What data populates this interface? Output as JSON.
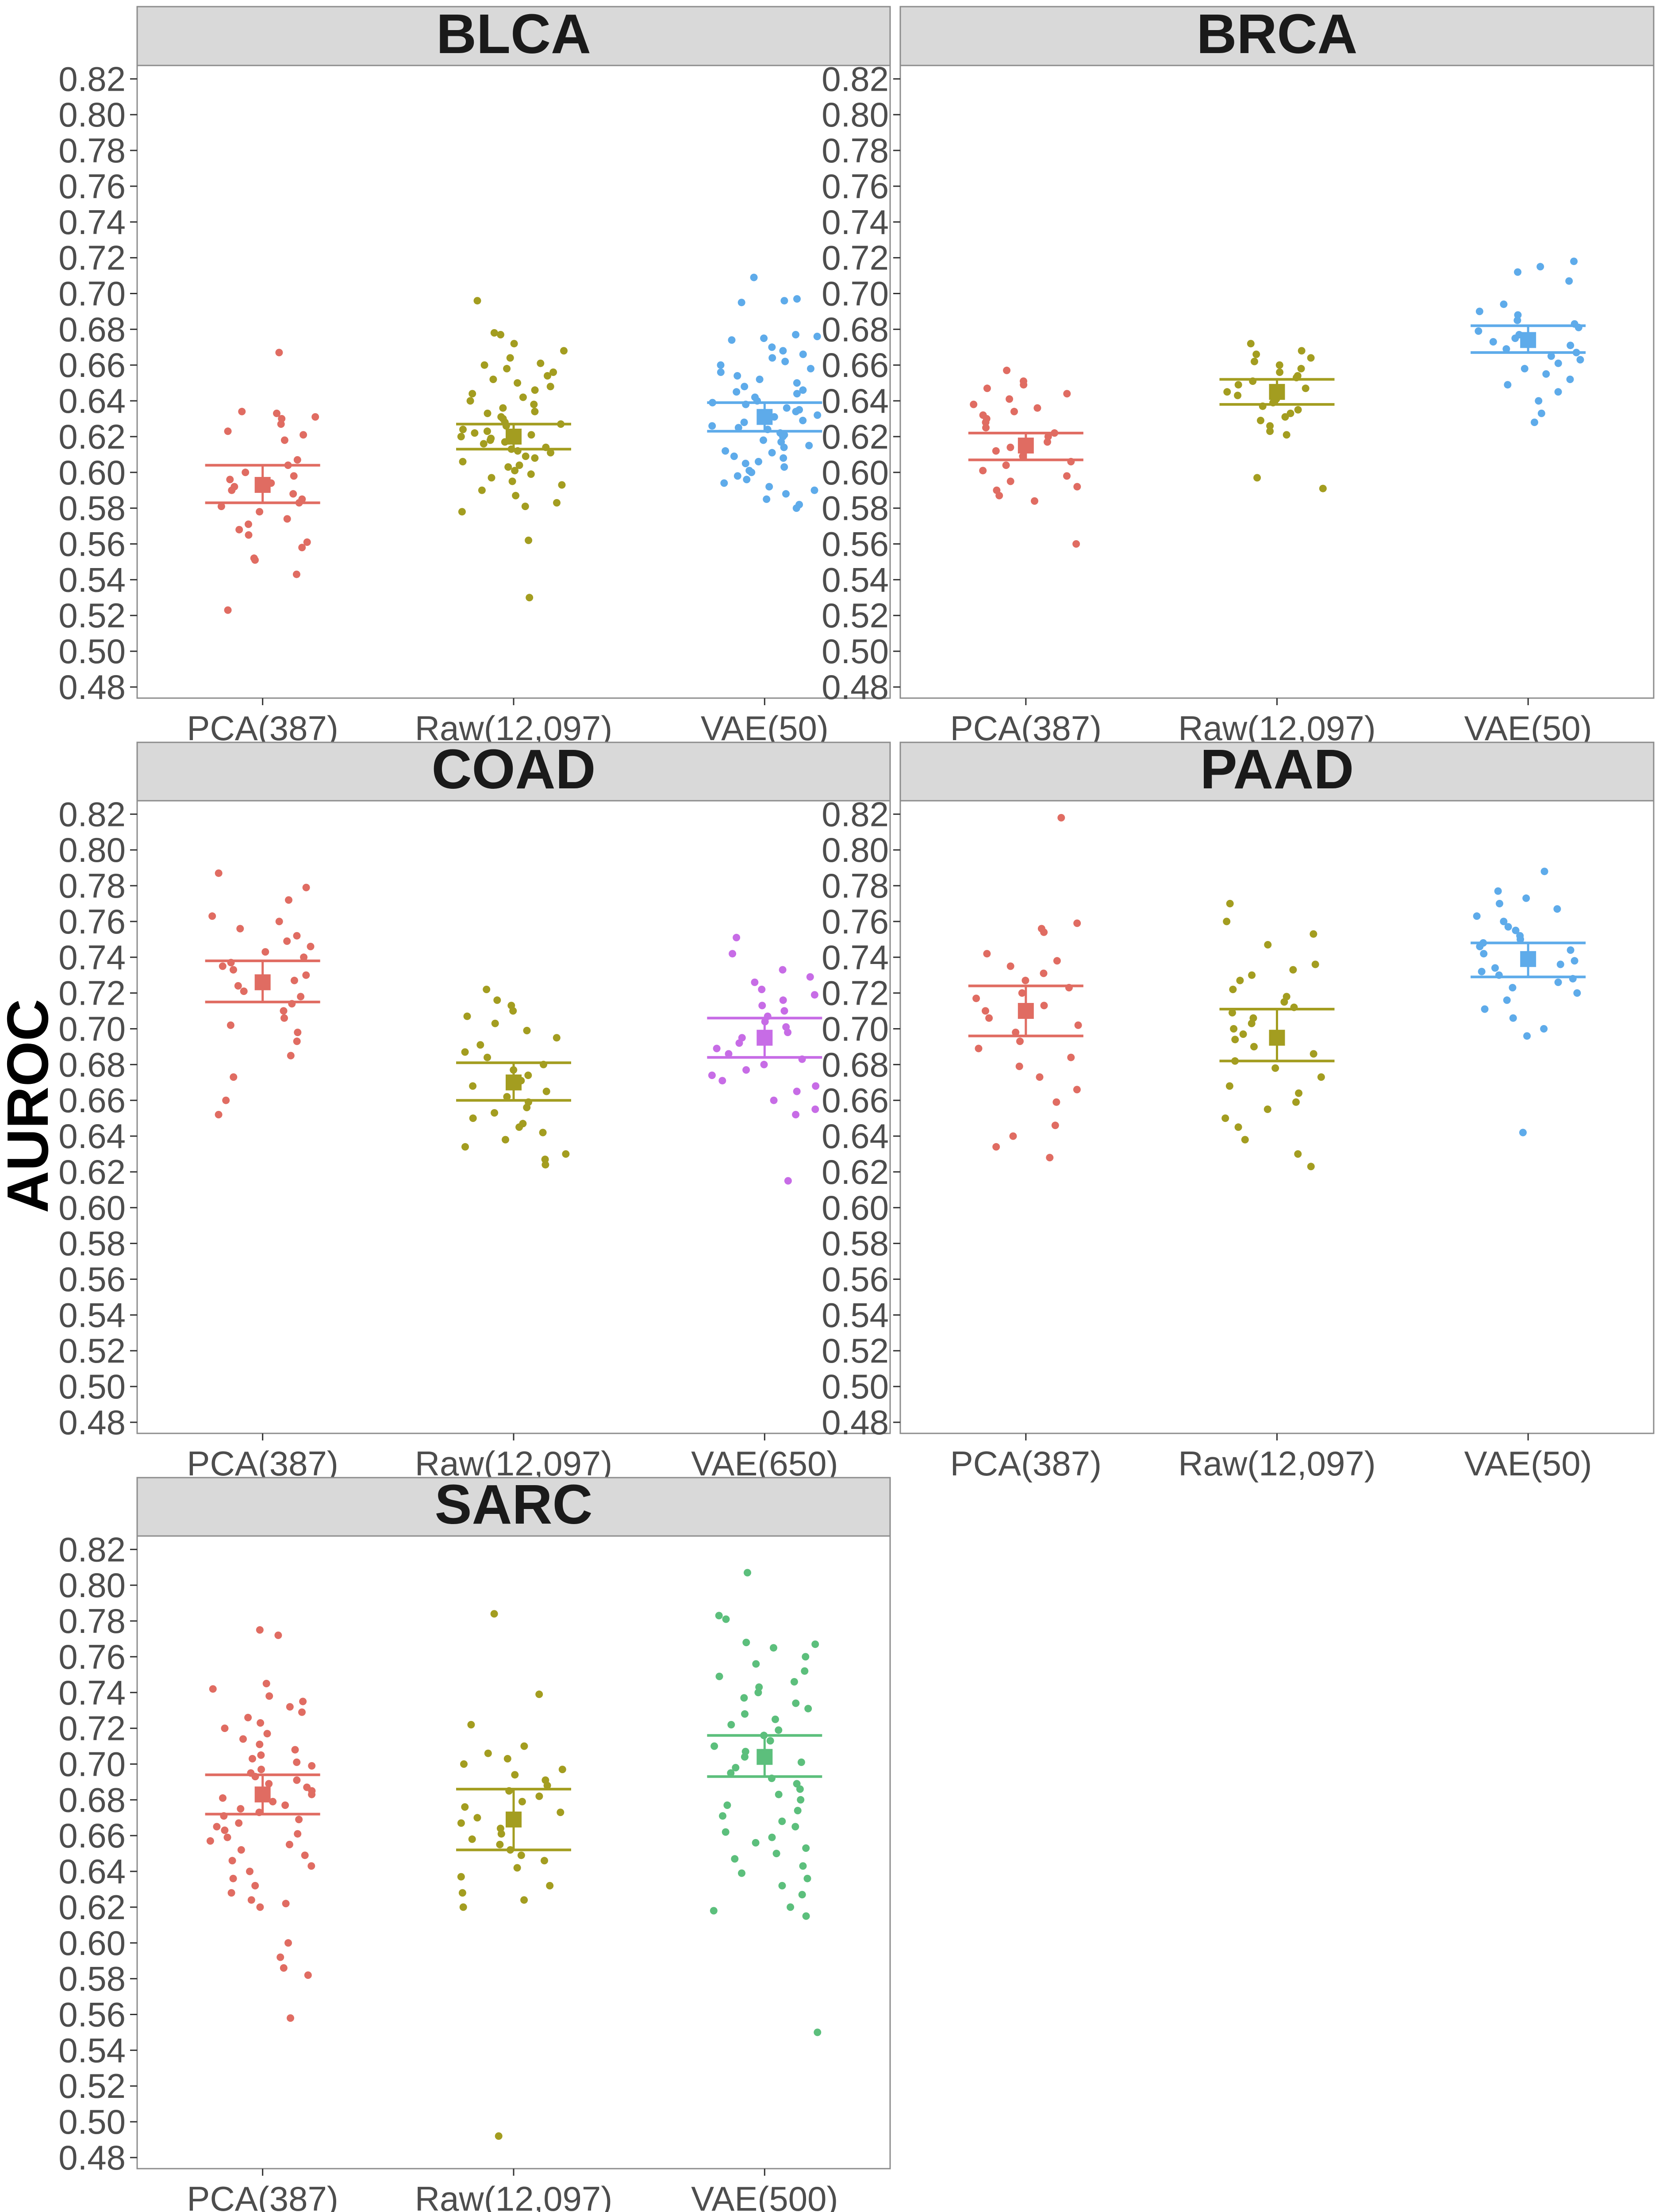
{
  "chart_data": {
    "type": "scatter",
    "ylabel": "AUROC",
    "ylim": [
      0.48,
      0.82
    ],
    "yticks": [
      "0.48",
      "0.50",
      "0.52",
      "0.54",
      "0.56",
      "0.58",
      "0.60",
      "0.62",
      "0.64",
      "0.66",
      "0.68",
      "0.70",
      "0.72",
      "0.74",
      "0.76",
      "0.78",
      "0.80",
      "0.82"
    ],
    "grid": false,
    "legend": "none",
    "colors": {
      "PCA": "#e06c62",
      "Raw": "#a39d20",
      "VAE_blue": "#5eabea",
      "VAE_purple": "#c76ce6",
      "VAE_green": "#5cbf7c"
    },
    "panels": [
      {
        "title": "BLCA",
        "categories": [
          "PCA(387)",
          "Raw(12,097)",
          "VAE(50)"
        ],
        "groups": [
          {
            "color": "#e06c62",
            "mean": 0.593,
            "ci": [
              0.583,
              0.604
            ],
            "points": [
              0.667,
              0.634,
              0.633,
              0.631,
              0.63,
              0.627,
              0.623,
              0.621,
              0.618,
              0.607,
              0.604,
              0.6,
              0.598,
              0.596,
              0.594,
              0.592,
              0.59,
              0.588,
              0.585,
              0.583,
              0.581,
              0.578,
              0.574,
              0.571,
              0.568,
              0.565,
              0.561,
              0.558,
              0.552,
              0.551,
              0.543,
              0.523
            ]
          },
          {
            "color": "#a39d20",
            "mean": 0.62,
            "ci": [
              0.613,
              0.627
            ],
            "points": [
              0.696,
              0.678,
              0.677,
              0.672,
              0.668,
              0.664,
              0.661,
              0.66,
              0.658,
              0.656,
              0.654,
              0.652,
              0.65,
              0.648,
              0.646,
              0.644,
              0.642,
              0.64,
              0.638,
              0.636,
              0.634,
              0.633,
              0.631,
              0.63,
              0.628,
              0.627,
              0.626,
              0.624,
              0.623,
              0.622,
              0.621,
              0.62,
              0.619,
              0.618,
              0.617,
              0.616,
              0.614,
              0.613,
              0.612,
              0.611,
              0.609,
              0.608,
              0.606,
              0.604,
              0.603,
              0.601,
              0.599,
              0.597,
              0.595,
              0.593,
              0.59,
              0.587,
              0.583,
              0.581,
              0.578,
              0.562,
              0.53
            ]
          },
          {
            "color": "#5eabea",
            "mean": 0.631,
            "ci": [
              0.623,
              0.639
            ],
            "points": [
              0.709,
              0.697,
              0.696,
              0.695,
              0.677,
              0.676,
              0.675,
              0.674,
              0.67,
              0.668,
              0.666,
              0.664,
              0.662,
              0.66,
              0.658,
              0.656,
              0.654,
              0.652,
              0.65,
              0.648,
              0.646,
              0.645,
              0.644,
              0.642,
              0.64,
              0.639,
              0.638,
              0.636,
              0.635,
              0.634,
              0.632,
              0.631,
              0.629,
              0.628,
              0.626,
              0.625,
              0.624,
              0.622,
              0.621,
              0.62,
              0.618,
              0.617,
              0.615,
              0.614,
              0.612,
              0.611,
              0.609,
              0.608,
              0.606,
              0.605,
              0.603,
              0.601,
              0.6,
              0.598,
              0.596,
              0.594,
              0.592,
              0.59,
              0.588,
              0.585,
              0.582,
              0.58
            ]
          }
        ]
      },
      {
        "title": "BRCA",
        "categories": [
          "PCA(387)",
          "Raw(12,097)",
          "VAE(50)"
        ],
        "groups": [
          {
            "color": "#e06c62",
            "mean": 0.615,
            "ci": [
              0.607,
              0.622
            ],
            "points": [
              0.657,
              0.651,
              0.649,
              0.647,
              0.644,
              0.641,
              0.638,
              0.636,
              0.634,
              0.632,
              0.63,
              0.628,
              0.625,
              0.622,
              0.62,
              0.617,
              0.614,
              0.612,
              0.609,
              0.606,
              0.604,
              0.601,
              0.598,
              0.595,
              0.592,
              0.59,
              0.587,
              0.584,
              0.56
            ]
          },
          {
            "color": "#a39d20",
            "mean": 0.645,
            "ci": [
              0.638,
              0.652
            ],
            "points": [
              0.672,
              0.668,
              0.666,
              0.664,
              0.662,
              0.66,
              0.658,
              0.656,
              0.654,
              0.653,
              0.651,
              0.649,
              0.647,
              0.645,
              0.643,
              0.641,
              0.639,
              0.637,
              0.635,
              0.633,
              0.631,
              0.629,
              0.626,
              0.623,
              0.621,
              0.597,
              0.591
            ]
          },
          {
            "color": "#5eabea",
            "mean": 0.674,
            "ci": [
              0.667,
              0.682
            ],
            "points": [
              0.718,
              0.715,
              0.712,
              0.707,
              0.694,
              0.69,
              0.688,
              0.685,
              0.683,
              0.681,
              0.679,
              0.677,
              0.675,
              0.673,
              0.671,
              0.669,
              0.667,
              0.665,
              0.663,
              0.661,
              0.658,
              0.655,
              0.652,
              0.649,
              0.645,
              0.64,
              0.633,
              0.628
            ]
          }
        ]
      },
      {
        "title": "COAD",
        "categories": [
          "PCA(387)",
          "Raw(12,097)",
          "VAE(650)"
        ],
        "groups": [
          {
            "color": "#e06c62",
            "mean": 0.726,
            "ci": [
              0.715,
              0.738
            ],
            "points": [
              0.787,
              0.779,
              0.772,
              0.763,
              0.76,
              0.756,
              0.752,
              0.749,
              0.746,
              0.743,
              0.74,
              0.737,
              0.735,
              0.733,
              0.73,
              0.727,
              0.724,
              0.721,
              0.718,
              0.714,
              0.71,
              0.706,
              0.702,
              0.698,
              0.693,
              0.685,
              0.673,
              0.66,
              0.652
            ]
          },
          {
            "color": "#a39d20",
            "mean": 0.67,
            "ci": [
              0.66,
              0.681
            ],
            "points": [
              0.722,
              0.716,
              0.713,
              0.71,
              0.707,
              0.703,
              0.699,
              0.695,
              0.691,
              0.687,
              0.684,
              0.68,
              0.677,
              0.674,
              0.671,
              0.668,
              0.665,
              0.662,
              0.659,
              0.656,
              0.653,
              0.65,
              0.647,
              0.645,
              0.642,
              0.638,
              0.634,
              0.63,
              0.627,
              0.624
            ]
          },
          {
            "color": "#c76ce6",
            "mean": 0.695,
            "ci": [
              0.684,
              0.706
            ],
            "points": [
              0.751,
              0.742,
              0.733,
              0.729,
              0.726,
              0.722,
              0.719,
              0.716,
              0.713,
              0.71,
              0.707,
              0.704,
              0.701,
              0.698,
              0.695,
              0.692,
              0.689,
              0.686,
              0.683,
              0.68,
              0.677,
              0.674,
              0.671,
              0.668,
              0.665,
              0.66,
              0.655,
              0.652,
              0.615
            ]
          }
        ]
      },
      {
        "title": "PAAD",
        "categories": [
          "PCA(387)",
          "Raw(12,097)",
          "VAE(50)"
        ],
        "groups": [
          {
            "color": "#e06c62",
            "mean": 0.71,
            "ci": [
              0.696,
              0.724
            ],
            "points": [
              0.818,
              0.759,
              0.756,
              0.754,
              0.742,
              0.738,
              0.735,
              0.731,
              0.727,
              0.723,
              0.72,
              0.717,
              0.713,
              0.71,
              0.706,
              0.702,
              0.698,
              0.693,
              0.689,
              0.684,
              0.679,
              0.673,
              0.666,
              0.659,
              0.646,
              0.64,
              0.634,
              0.628
            ]
          },
          {
            "color": "#a39d20",
            "mean": 0.695,
            "ci": [
              0.682,
              0.711
            ],
            "points": [
              0.77,
              0.76,
              0.753,
              0.747,
              0.736,
              0.733,
              0.73,
              0.727,
              0.722,
              0.718,
              0.715,
              0.712,
              0.709,
              0.706,
              0.703,
              0.7,
              0.697,
              0.694,
              0.69,
              0.686,
              0.682,
              0.678,
              0.673,
              0.668,
              0.664,
              0.659,
              0.655,
              0.65,
              0.645,
              0.638,
              0.63,
              0.623
            ]
          },
          {
            "color": "#5eabea",
            "mean": 0.739,
            "ci": [
              0.729,
              0.748
            ],
            "points": [
              0.788,
              0.777,
              0.773,
              0.77,
              0.767,
              0.763,
              0.76,
              0.757,
              0.755,
              0.752,
              0.75,
              0.748,
              0.746,
              0.744,
              0.742,
              0.74,
              0.738,
              0.736,
              0.734,
              0.732,
              0.73,
              0.728,
              0.726,
              0.723,
              0.72,
              0.716,
              0.711,
              0.706,
              0.7,
              0.696,
              0.642
            ]
          }
        ]
      },
      {
        "title": "SARC",
        "categories": [
          "PCA(387)",
          "Raw(12,097)",
          "VAE(500)"
        ],
        "groups": [
          {
            "color": "#e06c62",
            "mean": 0.683,
            "ci": [
              0.672,
              0.694
            ],
            "points": [
              0.775,
              0.772,
              0.745,
              0.742,
              0.738,
              0.735,
              0.732,
              0.729,
              0.726,
              0.723,
              0.72,
              0.717,
              0.714,
              0.711,
              0.708,
              0.705,
              0.703,
              0.701,
              0.699,
              0.697,
              0.695,
              0.693,
              0.691,
              0.689,
              0.687,
              0.685,
              0.683,
              0.681,
              0.679,
              0.677,
              0.675,
              0.673,
              0.671,
              0.669,
              0.667,
              0.665,
              0.663,
              0.661,
              0.659,
              0.657,
              0.655,
              0.652,
              0.649,
              0.646,
              0.643,
              0.64,
              0.636,
              0.632,
              0.628,
              0.624,
              0.622,
              0.62,
              0.6,
              0.592,
              0.586,
              0.582,
              0.558
            ]
          },
          {
            "color": "#a39d20",
            "mean": 0.669,
            "ci": [
              0.652,
              0.686
            ],
            "points": [
              0.784,
              0.739,
              0.722,
              0.71,
              0.706,
              0.703,
              0.7,
              0.697,
              0.694,
              0.691,
              0.688,
              0.685,
              0.682,
              0.679,
              0.676,
              0.673,
              0.67,
              0.667,
              0.664,
              0.661,
              0.658,
              0.655,
              0.652,
              0.649,
              0.646,
              0.642,
              0.637,
              0.632,
              0.628,
              0.624,
              0.62,
              0.492
            ]
          },
          {
            "color": "#5cbf7c",
            "mean": 0.704,
            "ci": [
              0.693,
              0.716
            ],
            "points": [
              0.807,
              0.783,
              0.781,
              0.768,
              0.767,
              0.765,
              0.76,
              0.756,
              0.752,
              0.749,
              0.746,
              0.743,
              0.74,
              0.737,
              0.734,
              0.731,
              0.728,
              0.725,
              0.722,
              0.719,
              0.716,
              0.713,
              0.71,
              0.707,
              0.704,
              0.701,
              0.698,
              0.695,
              0.692,
              0.689,
              0.686,
              0.683,
              0.68,
              0.677,
              0.674,
              0.671,
              0.668,
              0.665,
              0.662,
              0.659,
              0.656,
              0.653,
              0.65,
              0.647,
              0.643,
              0.639,
              0.636,
              0.632,
              0.627,
              0.62,
              0.618,
              0.615,
              0.55
            ]
          }
        ]
      }
    ]
  }
}
